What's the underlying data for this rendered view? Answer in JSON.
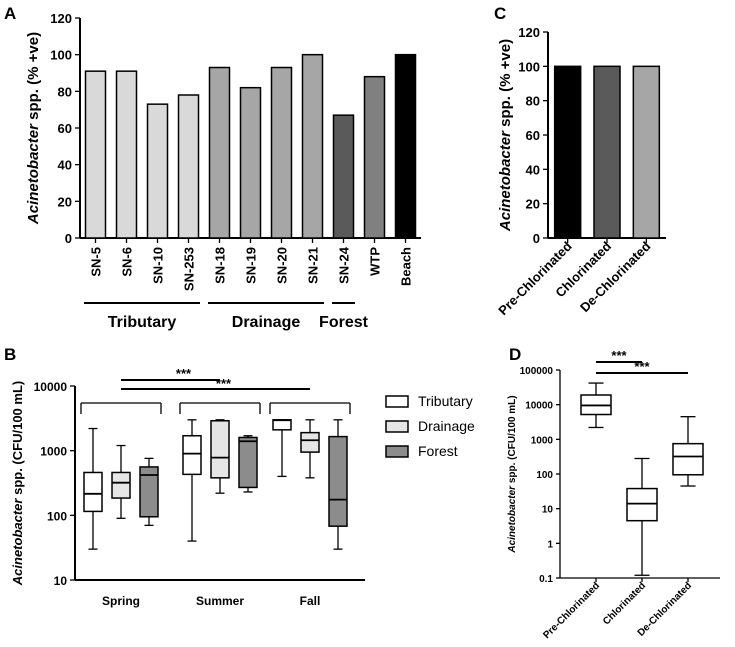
{
  "panels": {
    "a": "A",
    "b": "B",
    "c": "C",
    "d": "D"
  },
  "chart_data": [
    {
      "panel": "A",
      "type": "bar",
      "ylabel": "Acinetobacter spp. (% +ve)",
      "ylim": [
        0,
        120
      ],
      "yticks": [
        0,
        20,
        40,
        60,
        80,
        100,
        120
      ],
      "categories": [
        "SN-5",
        "SN-6",
        "SN-10",
        "SN-253",
        "SN-18",
        "SN-19",
        "SN-20",
        "SN-21",
        "SN-24",
        "WTP",
        "Beach"
      ],
      "values": [
        91,
        91,
        73,
        78,
        93,
        82,
        93,
        100,
        67,
        88,
        100
      ],
      "colors": [
        "#d9d9d9",
        "#d9d9d9",
        "#d9d9d9",
        "#d9d9d9",
        "#a6a6a6",
        "#a6a6a6",
        "#a6a6a6",
        "#a6a6a6",
        "#5a5a5a",
        "#808080",
        "#000000"
      ],
      "groups": [
        {
          "label": "Tributary",
          "members": [
            "SN-5",
            "SN-6",
            "SN-10",
            "SN-253"
          ]
        },
        {
          "label": "Drainage",
          "members": [
            "SN-18",
            "SN-19",
            "SN-20",
            "SN-21"
          ]
        },
        {
          "label": "Forest",
          "members": [
            "SN-24"
          ]
        }
      ]
    },
    {
      "panel": "C",
      "type": "bar",
      "ylabel": "Acinetobacter spp. (% +ve)",
      "ylim": [
        0,
        120
      ],
      "yticks": [
        0,
        20,
        40,
        60,
        80,
        100,
        120
      ],
      "categories": [
        "Pre-Chlorinated",
        "Chlorinated",
        "De-Chlorinated"
      ],
      "values": [
        100,
        100,
        100
      ],
      "colors": [
        "#000000",
        "#5a5a5a",
        "#a6a6a6"
      ]
    },
    {
      "panel": "B",
      "type": "box",
      "ylabel": "Acinetobacter spp. (CFU/100 mL)",
      "yscale": "log",
      "ylim": [
        10,
        10000
      ],
      "yticks": [
        "10",
        "100",
        "1000",
        "10000"
      ],
      "categories": [
        "Spring",
        "Summer",
        "Fall"
      ],
      "series": [
        {
          "name": "Tributary",
          "color": "#ffffff",
          "boxes": [
            {
              "min": 30,
              "q1": 115,
              "median": 215,
              "q3": 460,
              "max": 2200
            },
            {
              "min": 40,
              "q1": 430,
              "median": 900,
              "q3": 1700,
              "max": 3000
            },
            {
              "min": 400,
              "q1": 2100,
              "median": 2950,
              "q3": 3000,
              "max": 3000
            }
          ]
        },
        {
          "name": "Drainage",
          "color": "#e6e6e6",
          "boxes": [
            {
              "min": 90,
              "q1": 185,
              "median": 320,
              "q3": 460,
              "max": 1200
            },
            {
              "min": 220,
              "q1": 380,
              "median": 780,
              "q3": 2900,
              "max": 3000
            },
            {
              "min": 380,
              "q1": 950,
              "median": 1450,
              "q3": 1900,
              "max": 3000
            }
          ]
        },
        {
          "name": "Forest",
          "color": "#8c8c8c",
          "boxes": [
            {
              "min": 70,
              "q1": 95,
              "median": 420,
              "q3": 560,
              "max": 760
            },
            {
              "min": 230,
              "q1": 270,
              "median": 1400,
              "q3": 1600,
              "max": 1700
            },
            {
              "min": 30,
              "q1": 68,
              "median": 175,
              "q3": 1650,
              "max": 3000
            }
          ]
        }
      ],
      "significance": [
        {
          "from": "Spring",
          "to": "Summer",
          "label": "***"
        },
        {
          "from": "Spring",
          "to": "Fall",
          "label": "***"
        }
      ]
    },
    {
      "panel": "D",
      "type": "box",
      "ylabel": "Acinetobacter spp. (CFU/100 mL)",
      "yscale": "log",
      "ylim": [
        0.1,
        100000
      ],
      "yticks": [
        "0.1",
        "1",
        "10",
        "100",
        "1000",
        "10000",
        "100000"
      ],
      "categories": [
        "Pre-Chlorinated",
        "Chlorinated",
        "De-Chlorinated"
      ],
      "boxes": [
        {
          "min": 2200,
          "q1": 5200,
          "median": 9500,
          "q3": 19000,
          "max": 42000
        },
        {
          "min": 0.12,
          "q1": 4.5,
          "median": 14,
          "q3": 38,
          "max": 280
        },
        {
          "min": 45,
          "q1": 95,
          "median": 320,
          "q3": 750,
          "max": 4500
        }
      ],
      "significance": [
        {
          "from": "Pre-Chlorinated",
          "to": "Chlorinated",
          "label": "***"
        },
        {
          "from": "Pre-Chlorinated",
          "to": "De-Chlorinated",
          "label": "***"
        }
      ]
    }
  ]
}
